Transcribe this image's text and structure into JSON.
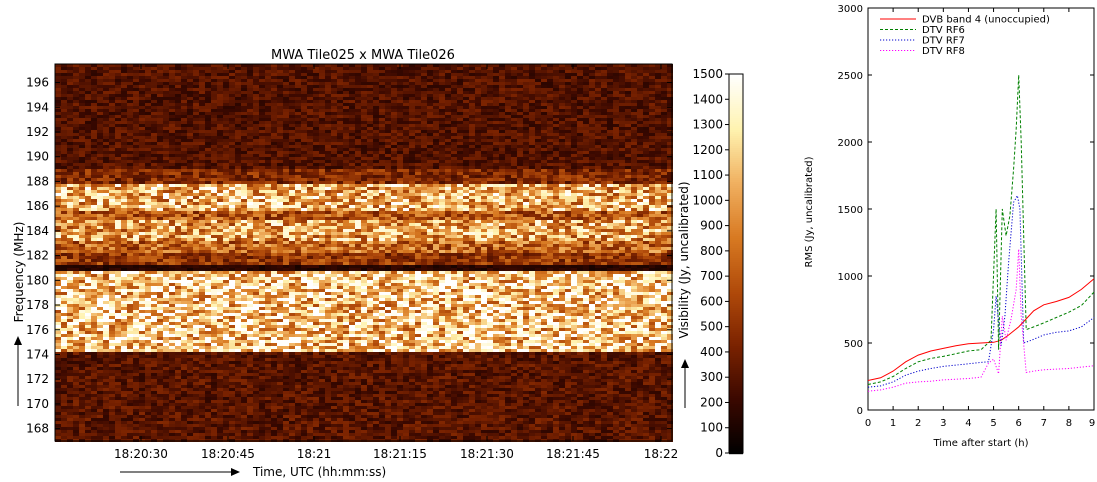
{
  "chart_data": [
    {
      "type": "heatmap",
      "title": "MWA Tile025 x MWA Tile026",
      "xlabel": "Time, UTC (hh:mm:ss)",
      "ylabel": "Frequency (MHz)",
      "colorbar_label": "Visibility (Jy, uncalibrated)",
      "x_ticks": [
        "18:20:30",
        "18:20:45",
        "18:21",
        "18:21:15",
        "18:21:30",
        "18:21:45",
        "18:22"
      ],
      "y_ticks": [
        168,
        170,
        172,
        174,
        176,
        178,
        180,
        182,
        184,
        186,
        188,
        190,
        192,
        194,
        196
      ],
      "ylim": [
        167,
        197.5
      ],
      "colorbar_ticks": [
        0,
        100,
        200,
        300,
        400,
        500,
        600,
        700,
        800,
        900,
        1000,
        1100,
        1200,
        1300,
        1400,
        1500
      ],
      "colorbar_range": [
        0,
        1500
      ],
      "colormap": [
        "#000000",
        "#3a0800",
        "#7a2200",
        "#b04a0a",
        "#d87a22",
        "#f0b060",
        "#fff3b0",
        "#ffffff"
      ],
      "bands": [
        {
          "from": 167,
          "to": 174.1,
          "level": 320
        },
        {
          "from": 174.1,
          "to": 180.7,
          "level": 1150
        },
        {
          "from": 180.7,
          "to": 181.2,
          "level": 150
        },
        {
          "from": 181.2,
          "to": 182.3,
          "level": 560
        },
        {
          "from": 182.3,
          "to": 183.3,
          "level": 760
        },
        {
          "from": 183.3,
          "to": 185.0,
          "level": 1000
        },
        {
          "from": 185.0,
          "to": 185.7,
          "level": 700
        },
        {
          "from": 185.7,
          "to": 187.7,
          "level": 1050
        },
        {
          "from": 187.7,
          "to": 189.0,
          "level": 470
        },
        {
          "from": 189.0,
          "to": 197.5,
          "level": 300
        }
      ]
    },
    {
      "type": "line",
      "title": "",
      "xlabel": "Time after start (h)",
      "ylabel": "RMS (Jy, uncalibrated)",
      "xlim": [
        0,
        9
      ],
      "ylim": [
        0,
        3000
      ],
      "x_ticks": [
        0,
        1,
        2,
        3,
        4,
        5,
        6,
        7,
        8,
        9
      ],
      "y_ticks": [
        0,
        500,
        1000,
        1500,
        2000,
        2500,
        3000
      ],
      "legend_position": "top-left",
      "series": [
        {
          "name": "DVB band 4 (unoccupied)",
          "color": "#ff0000",
          "dash": "solid",
          "x": [
            0,
            0.5,
            1,
            1.5,
            2,
            2.5,
            3,
            3.5,
            4,
            4.5,
            5,
            5.3,
            5.6,
            6,
            6.3,
            6.6,
            7,
            7.5,
            8,
            8.5,
            9
          ],
          "y": [
            220,
            240,
            290,
            360,
            410,
            440,
            460,
            480,
            495,
            500,
            505,
            520,
            560,
            620,
            680,
            740,
            785,
            810,
            840,
            900,
            980
          ]
        },
        {
          "name": "DTV RF6",
          "color": "#008000",
          "dash": "dashed",
          "x": [
            0,
            0.5,
            1,
            1.5,
            2,
            2.5,
            3,
            3.5,
            4,
            4.5,
            4.9,
            5.1,
            5.2,
            5.35,
            5.5,
            5.65,
            5.8,
            5.9,
            6.0,
            6.1,
            6.3,
            6.6,
            7,
            7.5,
            8,
            8.5,
            9
          ],
          "y": [
            190,
            210,
            250,
            310,
            360,
            385,
            400,
            420,
            440,
            450,
            520,
            1500,
            450,
            1500,
            1300,
            1450,
            1800,
            2100,
            2500,
            2000,
            600,
            620,
            650,
            690,
            730,
            780,
            880
          ]
        },
        {
          "name": "DTV RF7",
          "color": "#0000cc",
          "dash": "dotted",
          "x": [
            0,
            0.5,
            1,
            1.5,
            2,
            2.5,
            3,
            3.5,
            4,
            4.5,
            4.8,
            5.0,
            5.1,
            5.3,
            5.45,
            5.6,
            5.8,
            5.95,
            6.05,
            6.2,
            6.5,
            7,
            7.5,
            8,
            8.5,
            9
          ],
          "y": [
            170,
            180,
            210,
            260,
            290,
            310,
            325,
            335,
            345,
            355,
            360,
            600,
            850,
            480,
            700,
            1100,
            1550,
            1600,
            1500,
            500,
            520,
            560,
            580,
            590,
            620,
            690
          ]
        },
        {
          "name": "DTV RF8",
          "color": "#ff00ff",
          "dash": "dotted",
          "x": [
            0,
            0.5,
            1,
            1.5,
            2,
            2.5,
            3,
            3.5,
            4,
            4.5,
            4.8,
            5.0,
            5.2,
            5.35,
            5.5,
            5.7,
            5.9,
            6.0,
            6.1,
            6.3,
            6.6,
            7,
            7.5,
            8,
            8.5,
            9
          ],
          "y": [
            140,
            150,
            170,
            200,
            210,
            215,
            225,
            230,
            235,
            245,
            350,
            380,
            270,
            700,
            520,
            680,
            900,
            1200,
            700,
            280,
            290,
            300,
            305,
            310,
            320,
            330
          ]
        }
      ]
    }
  ]
}
